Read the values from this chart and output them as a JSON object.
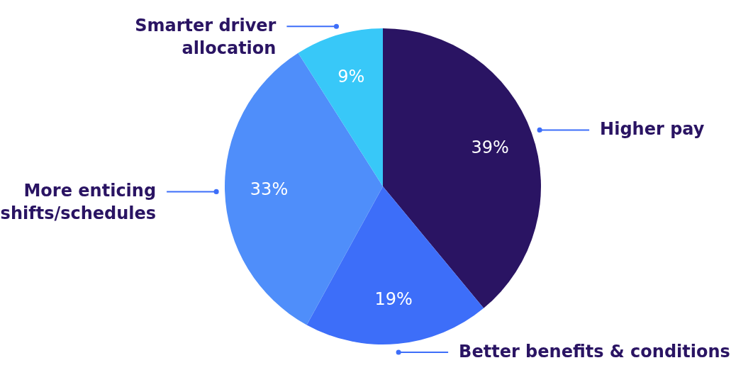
{
  "chart_data": {
    "type": "pie",
    "categories": [
      "Higher pay",
      "Better benefits & conditions",
      "More enticing shifts/schedules",
      "Smarter driver allocation"
    ],
    "values": [
      39,
      19,
      33,
      9
    ],
    "colors": [
      "#2a1463",
      "#3d6ef9",
      "#4f8efa",
      "#38c8f8"
    ],
    "value_labels": [
      "39%",
      "19%",
      "33%",
      "9%"
    ]
  }
}
